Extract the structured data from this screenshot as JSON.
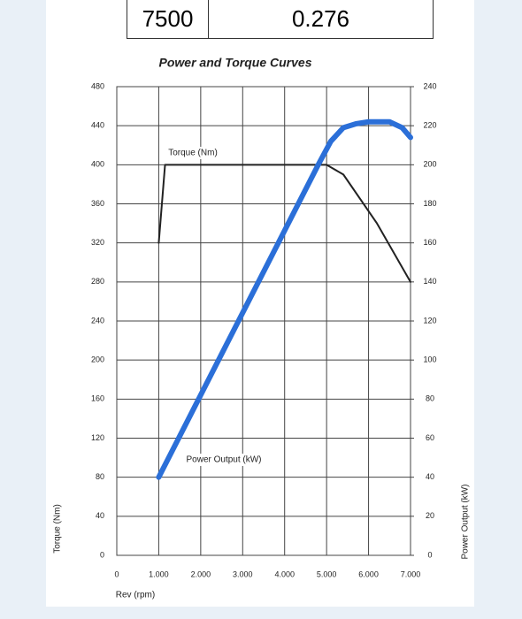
{
  "table": {
    "cells": [
      "7500",
      "0.276"
    ]
  },
  "chart_data": {
    "type": "line",
    "title": "Power and Torque Curves",
    "x_label": "Rev (rpm)",
    "y_label": "Torque (Nm)",
    "y2_label": "Power Output (kW)",
    "xlim": [
      0,
      7000
    ],
    "xticks": [
      0,
      {
        "value": 1000,
        "label": "1.000"
      },
      {
        "value": 2000,
        "label": "2.000"
      },
      {
        "value": 3000,
        "label": "3.000"
      },
      {
        "value": 4000,
        "label": "4.000"
      },
      {
        "value": 5000,
        "label": "5.000"
      },
      {
        "value": 6000,
        "label": "6.000"
      },
      {
        "value": 7000,
        "label": "7.000"
      }
    ],
    "ylim": [
      0,
      480
    ],
    "yticks": [
      0,
      40,
      80,
      120,
      160,
      200,
      240,
      280,
      320,
      360,
      400,
      440,
      480
    ],
    "y2lim": [
      0,
      240
    ],
    "y2ticks": [
      0,
      20,
      40,
      60,
      80,
      100,
      120,
      140,
      160,
      180,
      200,
      220,
      240
    ],
    "grid": true,
    "series": [
      {
        "name": "Torque (Nm)",
        "color": "#222222",
        "x": [
          1000,
          1150,
          5000,
          5400,
          6200,
          7000
        ],
        "values": [
          320,
          400,
          400,
          390,
          340,
          280
        ]
      },
      {
        "name": "Power Output (kW)",
        "color": "#2b6fd8",
        "axis": "y2",
        "x": [
          1000,
          4800,
          5100,
          5400,
          5700,
          6000,
          6500,
          6800,
          7000
        ],
        "values": [
          40,
          200,
          212,
          219,
          221,
          222,
          222,
          219,
          214
        ]
      }
    ]
  }
}
